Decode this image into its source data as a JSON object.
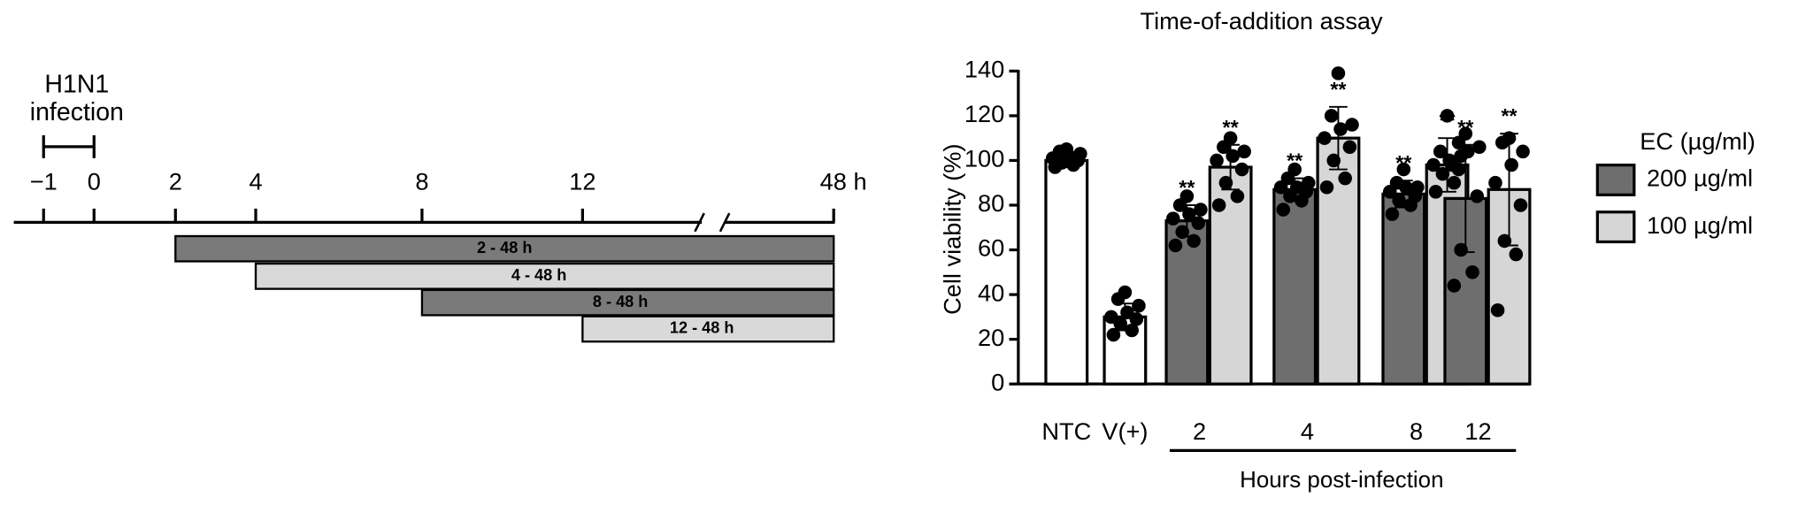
{
  "timeline": {
    "infection_label": [
      "H1N1",
      "infection"
    ],
    "ticks": [
      "−1",
      "0",
      "2",
      "4",
      "8",
      "12",
      "48 h"
    ],
    "bars": [
      "2 - 48 h",
      "4 - 48 h",
      "8 - 48 h",
      "12 - 48 h"
    ]
  },
  "chart_data": {
    "type": "bar",
    "title": "Time-of-addition assay",
    "y_label": "Cell viability (%)",
    "x_label": "Hours post-infection",
    "ylim": [
      0,
      140
    ],
    "yticks": [
      0,
      20,
      40,
      60,
      80,
      100,
      120,
      140
    ],
    "controls": {
      "categories": [
        "NTC",
        "V(+)"
      ],
      "color": "#ffffff",
      "values": [
        100,
        30
      ],
      "errors": [
        3,
        6
      ],
      "points": [
        [
          97,
          98,
          99,
          100,
          101,
          102,
          103,
          104,
          105
        ],
        [
          22,
          24,
          27,
          29,
          30,
          32,
          35,
          38,
          41
        ]
      ]
    },
    "categories": [
      "2",
      "4",
      "8",
      "12"
    ],
    "legend_title": "EC (µg/ml)",
    "series": [
      {
        "name": "200 µg/ml",
        "color": "#6e6e6e",
        "values": [
          73,
          87,
          85,
          83
        ],
        "errors": [
          7,
          5,
          6,
          24
        ],
        "significance": [
          "**",
          "**",
          "**",
          "**"
        ],
        "points": [
          [
            62,
            64,
            68,
            72,
            74,
            76,
            78,
            80,
            84
          ],
          [
            78,
            82,
            84,
            86,
            88,
            88,
            90,
            92,
            96
          ],
          [
            76,
            80,
            82,
            84,
            86,
            88,
            88,
            90,
            96
          ],
          [
            44,
            50,
            60,
            84,
            98,
            104,
            106,
            108,
            112
          ]
        ]
      },
      {
        "name": "100 µg/ml",
        "color": "#d6d6d6",
        "values": [
          97,
          110,
          98,
          87
        ],
        "errors": [
          10,
          14,
          12,
          25
        ],
        "significance": [
          "**",
          "**",
          "**",
          "**"
        ],
        "points": [
          [
            80,
            84,
            90,
            96,
            100,
            102,
            104,
            106,
            110
          ],
          [
            88,
            92,
            100,
            106,
            110,
            114,
            116,
            120,
            139
          ],
          [
            86,
            90,
            94,
            96,
            98,
            100,
            102,
            104,
            120
          ],
          [
            33,
            58,
            64,
            80,
            90,
            98,
            104,
            108,
            110
          ]
        ]
      }
    ]
  }
}
